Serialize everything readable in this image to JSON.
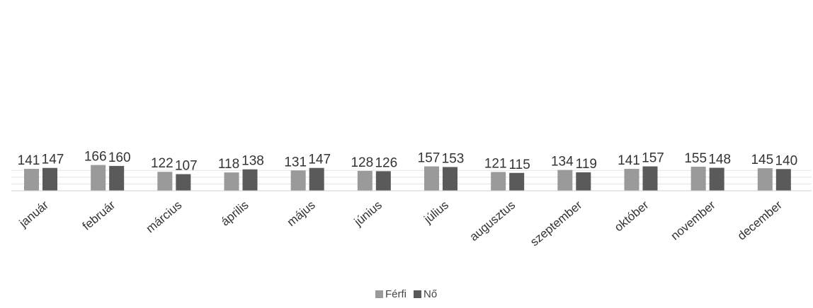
{
  "chart_data": {
    "type": "bar",
    "categories": [
      "január",
      "február",
      "március",
      "április",
      "május",
      "június",
      "július",
      "augusztus",
      "szeptember",
      "október",
      "november",
      "december"
    ],
    "series": [
      {
        "name": "Férfi",
        "values": [
          141,
          166,
          122,
          118,
          131,
          128,
          157,
          121,
          134,
          141,
          155,
          145
        ],
        "color": "#9a9a9a"
      },
      {
        "name": "Nő",
        "values": [
          147,
          160,
          107,
          138,
          147,
          126,
          153,
          115,
          119,
          157,
          148,
          140
        ],
        "color": "#5a5a5a"
      }
    ],
    "title": "",
    "xlabel": "",
    "ylabel": "",
    "ylim": [
      0,
      175
    ],
    "grid": true,
    "legend": "bottom-center"
  }
}
